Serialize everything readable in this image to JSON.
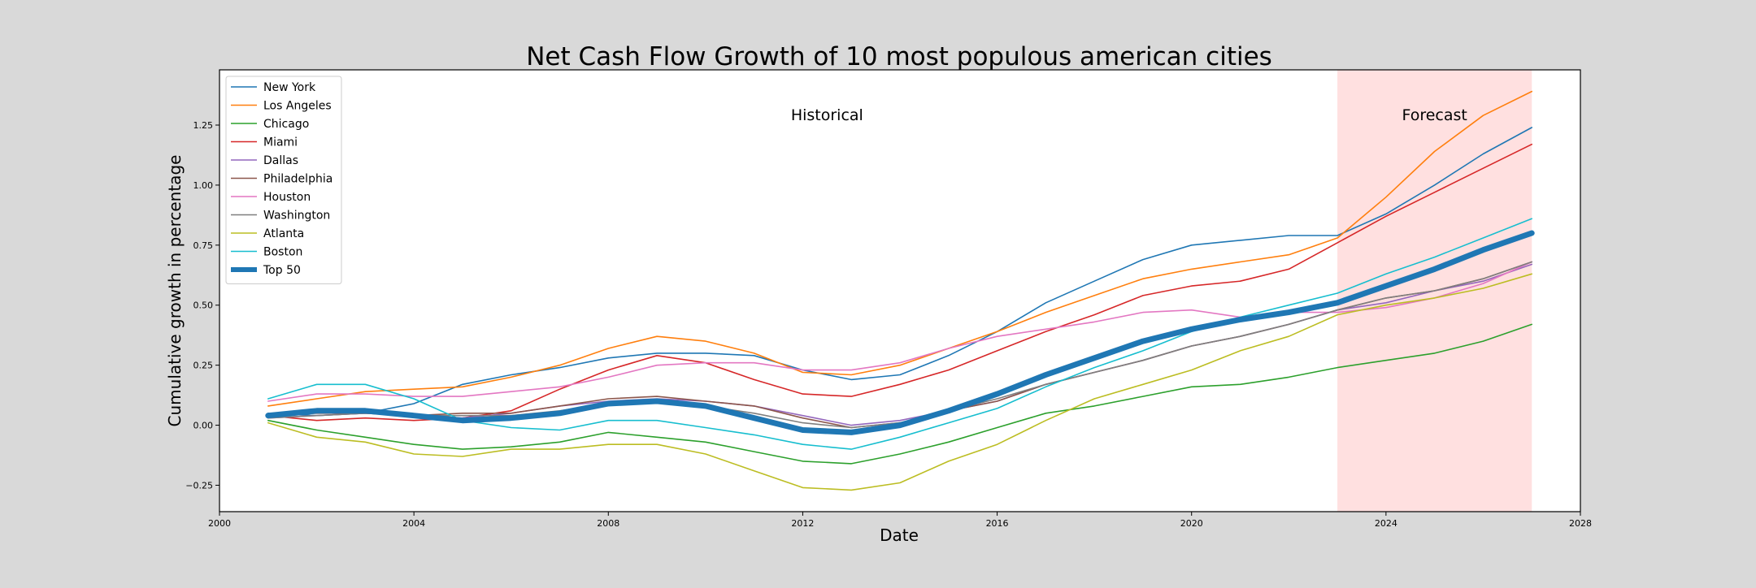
{
  "chart_data": {
    "type": "line",
    "title": "Net Cash Flow Growth of 10 most populous american cities",
    "xlabel": "Date",
    "ylabel": "Cumulative growth in percentage",
    "xlim": [
      2000,
      2028
    ],
    "ylim": [
      -0.36,
      1.48
    ],
    "x_ticks": [
      2000,
      2004,
      2008,
      2012,
      2016,
      2020,
      2024,
      2028
    ],
    "y_ticks": [
      -0.25,
      0.0,
      0.25,
      0.5,
      0.75,
      1.0,
      1.25
    ],
    "y_tick_labels": [
      "−0.25",
      "0.00",
      "0.25",
      "0.50",
      "0.75",
      "1.00",
      "1.25"
    ],
    "grid": false,
    "legend_position": "upper-left",
    "forecast_span": [
      2023,
      2027
    ],
    "forecast_color": "#ffe0e0",
    "annotations": [
      {
        "text": "Historical",
        "x": 2012.5,
        "y": 1.27
      },
      {
        "text": "Forecast",
        "x": 2025,
        "y": 1.27
      }
    ],
    "x": [
      2001,
      2002,
      2003,
      2004,
      2005,
      2006,
      2007,
      2008,
      2009,
      2010,
      2011,
      2012,
      2013,
      2014,
      2015,
      2016,
      2017,
      2018,
      2019,
      2020,
      2021,
      2022,
      2023,
      2024,
      2025,
      2026,
      2027
    ],
    "series": [
      {
        "name": "New York",
        "color": "#1f77b4",
        "width": 1.6,
        "values": [
          0.05,
          0.04,
          0.05,
          0.09,
          0.17,
          0.21,
          0.24,
          0.28,
          0.3,
          0.3,
          0.29,
          0.23,
          0.19,
          0.21,
          0.29,
          0.39,
          0.51,
          0.6,
          0.69,
          0.75,
          0.77,
          0.79,
          0.79,
          0.88,
          1.0,
          1.13,
          1.24
        ]
      },
      {
        "name": "Los Angeles",
        "color": "#ff7f0e",
        "width": 1.6,
        "values": [
          0.08,
          0.11,
          0.14,
          0.15,
          0.16,
          0.2,
          0.25,
          0.32,
          0.37,
          0.35,
          0.3,
          0.22,
          0.21,
          0.25,
          0.32,
          0.39,
          0.47,
          0.54,
          0.61,
          0.65,
          0.68,
          0.71,
          0.78,
          0.95,
          1.14,
          1.29,
          1.39
        ]
      },
      {
        "name": "Chicago",
        "color": "#2ca02c",
        "width": 1.6,
        "values": [
          0.02,
          -0.02,
          -0.05,
          -0.08,
          -0.1,
          -0.09,
          -0.07,
          -0.03,
          -0.05,
          -0.07,
          -0.11,
          -0.15,
          -0.16,
          -0.12,
          -0.07,
          -0.01,
          0.05,
          0.08,
          0.12,
          0.16,
          0.17,
          0.2,
          0.24,
          0.27,
          0.3,
          0.35,
          0.42
        ]
      },
      {
        "name": "Miami",
        "color": "#d62728",
        "width": 1.6,
        "values": [
          0.04,
          0.02,
          0.03,
          0.02,
          0.03,
          0.06,
          0.15,
          0.23,
          0.29,
          0.26,
          0.19,
          0.13,
          0.12,
          0.17,
          0.23,
          0.31,
          0.39,
          0.46,
          0.54,
          0.58,
          0.6,
          0.65,
          0.76,
          0.87,
          0.97,
          1.07,
          1.17
        ]
      },
      {
        "name": "Dallas",
        "color": "#9467bd",
        "width": 1.6,
        "values": [
          0.03,
          0.04,
          0.05,
          0.04,
          0.03,
          0.05,
          0.08,
          0.1,
          0.11,
          0.1,
          0.08,
          0.04,
          0.0,
          0.02,
          0.06,
          0.1,
          0.17,
          0.22,
          0.27,
          0.33,
          0.37,
          0.42,
          0.48,
          0.51,
          0.56,
          0.6,
          0.67
        ]
      },
      {
        "name": "Philadelphia",
        "color": "#8c564b",
        "width": 1.6,
        "values": [
          0.04,
          0.05,
          0.05,
          0.04,
          0.05,
          0.05,
          0.08,
          0.11,
          0.12,
          0.1,
          0.08,
          0.03,
          -0.01,
          0.01,
          0.06,
          0.1,
          0.17,
          0.22,
          0.27,
          0.33,
          0.37,
          0.42,
          0.48,
          0.53,
          0.56,
          0.61,
          0.68
        ]
      },
      {
        "name": "Houston",
        "color": "#e377c2",
        "width": 1.6,
        "values": [
          0.1,
          0.13,
          0.13,
          0.12,
          0.12,
          0.14,
          0.16,
          0.2,
          0.25,
          0.26,
          0.26,
          0.23,
          0.23,
          0.26,
          0.32,
          0.37,
          0.4,
          0.43,
          0.47,
          0.48,
          0.45,
          0.47,
          0.47,
          0.49,
          0.53,
          0.59,
          0.68
        ]
      },
      {
        "name": "Washington",
        "color": "#7f7f7f",
        "width": 1.6,
        "values": [
          0.03,
          0.04,
          0.05,
          0.04,
          0.04,
          0.04,
          0.06,
          0.09,
          0.1,
          0.08,
          0.05,
          0.01,
          -0.01,
          0.01,
          0.06,
          0.11,
          0.17,
          0.22,
          0.27,
          0.33,
          0.37,
          0.42,
          0.48,
          0.53,
          0.56,
          0.61,
          0.68
        ]
      },
      {
        "name": "Atlanta",
        "color": "#bcbd22",
        "width": 1.6,
        "values": [
          0.01,
          -0.05,
          -0.07,
          -0.12,
          -0.13,
          -0.1,
          -0.1,
          -0.08,
          -0.08,
          -0.12,
          -0.19,
          -0.26,
          -0.27,
          -0.24,
          -0.15,
          -0.08,
          0.02,
          0.11,
          0.17,
          0.23,
          0.31,
          0.37,
          0.46,
          0.5,
          0.53,
          0.57,
          0.63
        ]
      },
      {
        "name": "Boston",
        "color": "#17becf",
        "width": 1.6,
        "values": [
          0.11,
          0.17,
          0.17,
          0.11,
          0.02,
          -0.01,
          -0.02,
          0.02,
          0.02,
          -0.01,
          -0.04,
          -0.08,
          -0.1,
          -0.05,
          0.01,
          0.07,
          0.16,
          0.24,
          0.31,
          0.39,
          0.45,
          0.5,
          0.55,
          0.63,
          0.7,
          0.78,
          0.86
        ]
      },
      {
        "name": "Top 50",
        "color": "#1f77b4",
        "width": 7,
        "values": [
          0.04,
          0.06,
          0.06,
          0.04,
          0.02,
          0.03,
          0.05,
          0.09,
          0.1,
          0.08,
          0.03,
          -0.02,
          -0.03,
          0.0,
          0.06,
          0.13,
          0.21,
          0.28,
          0.35,
          0.4,
          0.44,
          0.47,
          0.51,
          0.58,
          0.65,
          0.73,
          0.8
        ]
      }
    ]
  }
}
